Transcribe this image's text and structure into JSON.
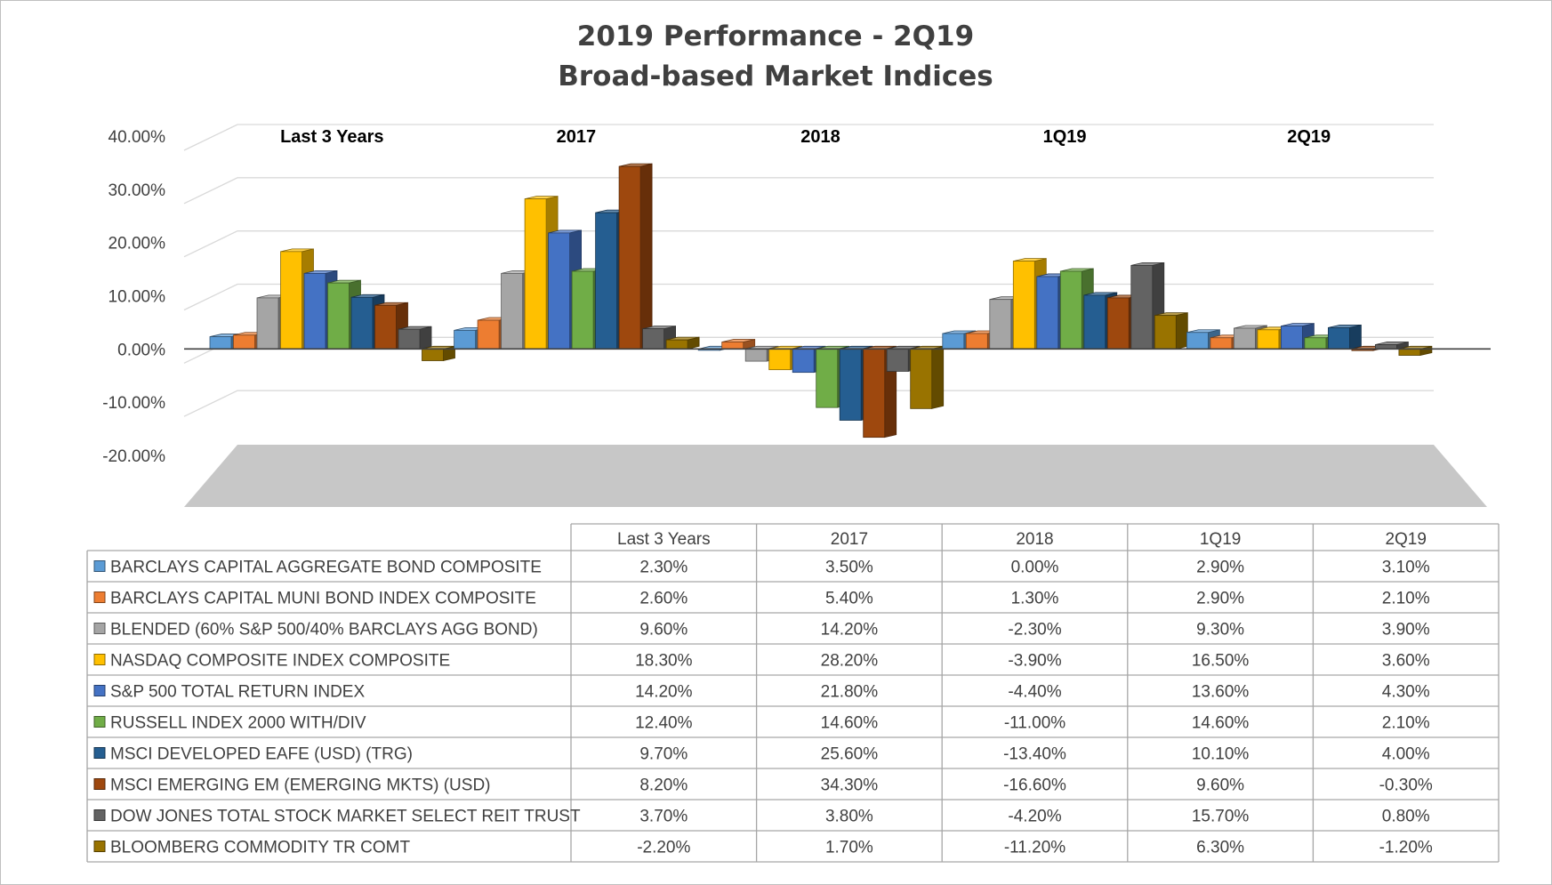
{
  "chart_data": {
    "type": "bar",
    "title": "2019 Performance - 2Q19",
    "subtitle": "Broad-based Market Indices",
    "categories": [
      "Last 3 Years",
      "2017",
      "2018",
      "1Q19",
      "2Q19"
    ],
    "ylim": [
      -20,
      40
    ],
    "yticks": [
      "40.00%",
      "30.00%",
      "20.00%",
      "10.00%",
      "0.00%",
      "-10.00%",
      "-20.00%"
    ],
    "grid": true,
    "legend": "data-table",
    "series": [
      {
        "name": "BARCLAYS CAPITAL AGGREGATE BOND COMPOSITE",
        "color": "#5b9bd5",
        "values": [
          2.3,
          3.5,
          0.0,
          2.9,
          3.1
        ],
        "labels": [
          "2.30%",
          "3.50%",
          "0.00%",
          "2.90%",
          "3.10%"
        ]
      },
      {
        "name": "BARCLAYS CAPITAL MUNI BOND INDEX COMPOSITE",
        "color": "#ed7d31",
        "values": [
          2.6,
          5.4,
          1.3,
          2.9,
          2.1
        ],
        "labels": [
          "2.60%",
          "5.40%",
          "1.30%",
          "2.90%",
          "2.10%"
        ]
      },
      {
        "name": "BLENDED (60% S&P 500/40% BARCLAYS AGG BOND)",
        "color": "#a5a5a5",
        "values": [
          9.6,
          14.2,
          -2.3,
          9.3,
          3.9
        ],
        "labels": [
          "9.60%",
          "14.20%",
          "-2.30%",
          "9.30%",
          "3.90%"
        ]
      },
      {
        "name": "NASDAQ COMPOSITE INDEX COMPOSITE",
        "color": "#ffc000",
        "values": [
          18.3,
          28.2,
          -3.9,
          16.5,
          3.6
        ],
        "labels": [
          "18.30%",
          "28.20%",
          "-3.90%",
          "16.50%",
          "3.60%"
        ]
      },
      {
        "name": "S&P 500 TOTAL RETURN INDEX",
        "color": "#4472c4",
        "values": [
          14.2,
          21.8,
          -4.4,
          13.6,
          4.3
        ],
        "labels": [
          "14.20%",
          "21.80%",
          "-4.40%",
          "13.60%",
          "4.30%"
        ]
      },
      {
        "name": "RUSSELL INDEX 2000 WITH/DIV",
        "color": "#70ad47",
        "values": [
          12.4,
          14.6,
          -11.0,
          14.6,
          2.1
        ],
        "labels": [
          "12.40%",
          "14.60%",
          "-11.00%",
          "14.60%",
          "2.10%"
        ]
      },
      {
        "name": "MSCI DEVELOPED EAFE (USD) (TRG)",
        "color": "#255e91",
        "values": [
          9.7,
          25.6,
          -13.4,
          10.1,
          4.0
        ],
        "labels": [
          "9.70%",
          "25.60%",
          "-13.40%",
          "10.10%",
          "4.00%"
        ]
      },
      {
        "name": "MSCI EMERGING EM (EMERGING MKTS) (USD)",
        "color": "#9e480e",
        "values": [
          8.2,
          34.3,
          -16.6,
          9.6,
          -0.3
        ],
        "labels": [
          "8.20%",
          "34.30%",
          "-16.60%",
          "9.60%",
          "-0.30%"
        ]
      },
      {
        "name": "DOW JONES TOTAL STOCK MARKET SELECT REIT TRUST",
        "color": "#636363",
        "values": [
          3.7,
          3.8,
          -4.2,
          15.7,
          0.8
        ],
        "labels": [
          "3.70%",
          "3.80%",
          "-4.20%",
          "15.70%",
          "0.80%"
        ]
      },
      {
        "name": "BLOOMBERG COMMODITY TR COMT",
        "color": "#997300",
        "values": [
          -2.2,
          1.7,
          -11.2,
          6.3,
          -1.2
        ],
        "labels": [
          "-2.20%",
          "1.70%",
          "-11.20%",
          "6.30%",
          "-1.20%"
        ]
      }
    ]
  }
}
